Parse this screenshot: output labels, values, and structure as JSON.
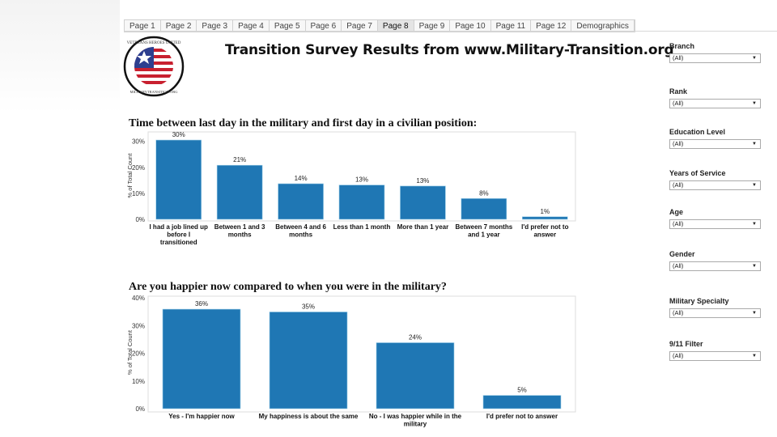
{
  "tabs": [
    "Page 1",
    "Page 2",
    "Page 3",
    "Page 4",
    "Page 5",
    "Page 6",
    "Page 7",
    "Page 8",
    "Page 9",
    "Page 10",
    "Page 11",
    "Page 12",
    "Demographics"
  ],
  "active_tab": "Page 8",
  "header": {
    "title": "Transition Survey Results from www.Military-Transition.org",
    "logo_text": "VETERANS HEROES UNITED MILITARYTRANSITION.ORG"
  },
  "charts": [
    {
      "title": "Time between last day in the military and first day in a civilian position:"
    },
    {
      "title": "Are you happier now compared to when you were in the military?"
    }
  ],
  "chart_data": [
    {
      "type": "bar",
      "ylabel": "% of Total Count",
      "ylim": [
        0,
        33
      ],
      "yticks": [
        "0%",
        "10%",
        "20%",
        "30%"
      ],
      "ytick_values": [
        0,
        10,
        20,
        30
      ],
      "categories": [
        [
          "I had a job lined up",
          "before I",
          "transitioned"
        ],
        [
          "Between 1 and 3",
          "months"
        ],
        [
          "Between 4 and 6",
          "months"
        ],
        [
          "Less than 1 month"
        ],
        [
          "More than 1 year"
        ],
        [
          "Between 7 months",
          "and 1 year"
        ],
        [
          "I'd prefer not to",
          "answer"
        ]
      ],
      "values": [
        30.5,
        20.8,
        13.7,
        13.2,
        12.8,
        8.0,
        1.0
      ],
      "labels": [
        "30%",
        "21%",
        "14%",
        "13%",
        "13%",
        "8%",
        "1%"
      ],
      "color": "#1f77b4"
    },
    {
      "type": "bar",
      "ylabel": "% of Total Count",
      "ylim": [
        0,
        40
      ],
      "yticks": [
        "0%",
        "10%",
        "20%",
        "30%",
        "40%"
      ],
      "ytick_values": [
        0,
        10,
        20,
        30,
        40
      ],
      "categories": [
        [
          "Yes - I'm happier now"
        ],
        [
          "My happiness is about the same"
        ],
        [
          "No - I was happier while in the",
          "military"
        ],
        [
          "I'd prefer not to answer"
        ]
      ],
      "values": [
        35.9,
        34.9,
        23.8,
        4.8
      ],
      "labels": [
        "36%",
        "35%",
        "24%",
        "5%"
      ],
      "color": "#1f77b4"
    }
  ],
  "filters": [
    {
      "label": "Branch",
      "value": "(All)"
    },
    {
      "label": "Rank",
      "value": "(All)"
    },
    {
      "label": "Education Level",
      "value": "(All)"
    },
    {
      "label": "Years of Service",
      "value": "(All)"
    },
    {
      "label": "Age",
      "value": "(All)"
    },
    {
      "label": "Gender",
      "value": "(All)"
    },
    {
      "label": "Military Specialty",
      "value": "(All)"
    },
    {
      "label": "9/11 Filter",
      "value": "(All)"
    }
  ]
}
